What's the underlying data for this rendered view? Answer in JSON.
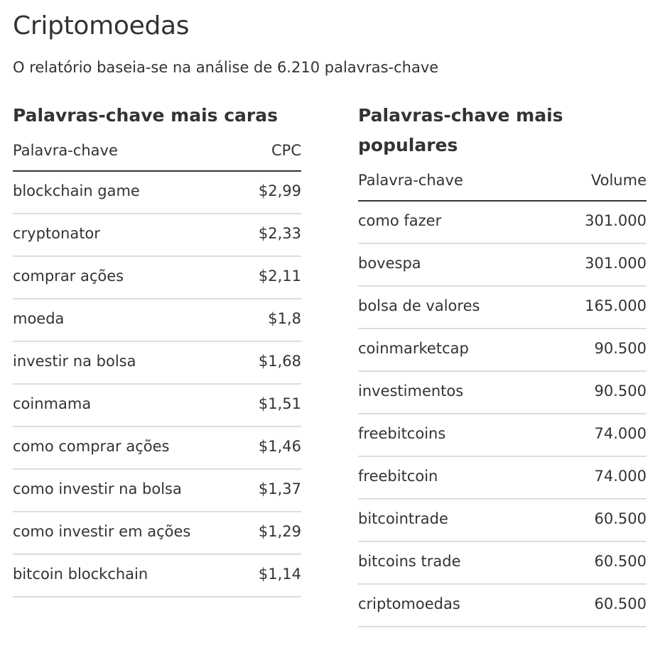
{
  "header": {
    "title": "Criptomoedas",
    "subtitle": "O relatório baseia-se na análise de 6.210 palavras-chave"
  },
  "expensive": {
    "heading": "Palavras-chave mais caras",
    "col_keyword": "Palavra-chave",
    "col_value": "CPC",
    "rows": [
      {
        "keyword": "blockchain game",
        "value": "$2,99"
      },
      {
        "keyword": "cryptonator",
        "value": "$2,33"
      },
      {
        "keyword": "comprar ações",
        "value": "$2,11"
      },
      {
        "keyword": "moeda",
        "value": "$1,8"
      },
      {
        "keyword": "investir na bolsa",
        "value": "$1,68"
      },
      {
        "keyword": "coinmama",
        "value": "$1,51"
      },
      {
        "keyword": "como comprar ações",
        "value": "$1,46"
      },
      {
        "keyword": "como investir na bolsa",
        "value": "$1,37"
      },
      {
        "keyword": "como investir em ações",
        "value": "$1,29"
      },
      {
        "keyword": "bitcoin blockchain",
        "value": "$1,14"
      }
    ]
  },
  "popular": {
    "heading": "Palavras-chave mais populares",
    "col_keyword": "Palavra-chave",
    "col_value": "Volume",
    "rows": [
      {
        "keyword": "como fazer",
        "value": "301.000"
      },
      {
        "keyword": "bovespa",
        "value": "301.000"
      },
      {
        "keyword": "bolsa de valores",
        "value": "165.000"
      },
      {
        "keyword": "coinmarketcap",
        "value": "90.500"
      },
      {
        "keyword": "investimentos",
        "value": "90.500"
      },
      {
        "keyword": "freebitcoins",
        "value": "74.000"
      },
      {
        "keyword": "freebitcoin",
        "value": "74.000"
      },
      {
        "keyword": "bitcointrade",
        "value": "60.500"
      },
      {
        "keyword": "bitcoins trade",
        "value": "60.500"
      },
      {
        "keyword": "criptomoedas",
        "value": "60.500"
      }
    ]
  }
}
